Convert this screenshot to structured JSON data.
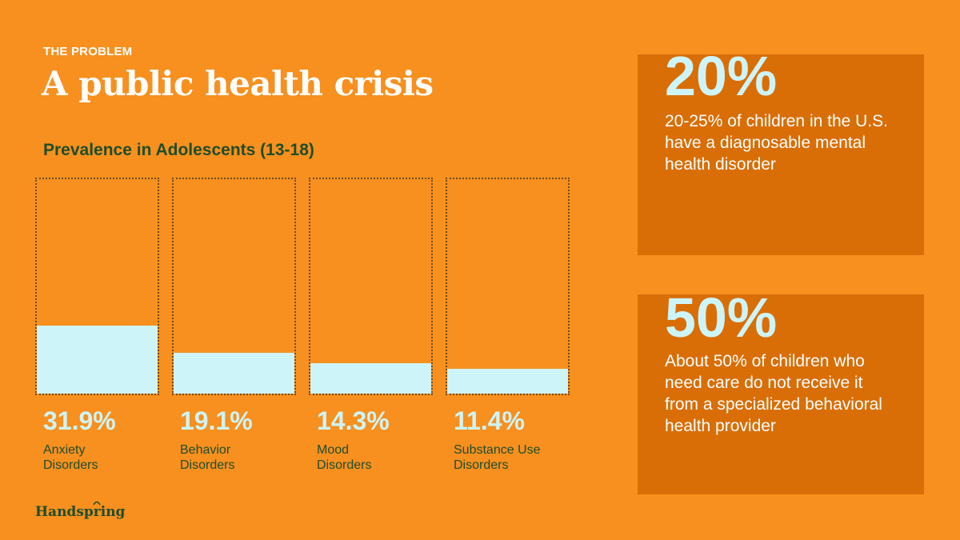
{
  "header": {
    "eyebrow": "THE PROBLEM",
    "title": "A public health crisis"
  },
  "chart_data": {
    "type": "bar",
    "title": "Prevalence in Adolescents (13-18)",
    "xlabel": "",
    "ylabel": "",
    "ylim": [
      0,
      100
    ],
    "categories": [
      "Anxiety Disorders",
      "Behavior Disorders",
      "Mood Disorders",
      "Substance Use Disorders"
    ],
    "values": [
      31.9,
      19.1,
      14.3,
      11.4
    ],
    "value_labels": [
      "31.9%",
      "19.1%",
      "14.3%",
      "11.4%"
    ],
    "label_lines": [
      [
        "Anxiety",
        "Disorders"
      ],
      [
        "Behavior",
        "Disorders"
      ],
      [
        "Mood",
        "Disorders"
      ],
      [
        "Substance Use",
        "Disorders"
      ]
    ],
    "colors": {
      "fill": "#CDF4F8",
      "frame": "#6E4A1E"
    }
  },
  "stats": [
    {
      "value": "20%",
      "text": "20-25% of children in the U.S. have a diagnosable mental health disorder"
    },
    {
      "value": "50%",
      "text": "About 50% of children who need care do not receive it from a specialized behavioral health provider"
    }
  ],
  "logo": {
    "text": "Handspring"
  },
  "colors": {
    "background": "#F7901E",
    "panel": "#D96E06",
    "accent": "#CDF4F8",
    "dark_green": "#1E4D2B"
  }
}
